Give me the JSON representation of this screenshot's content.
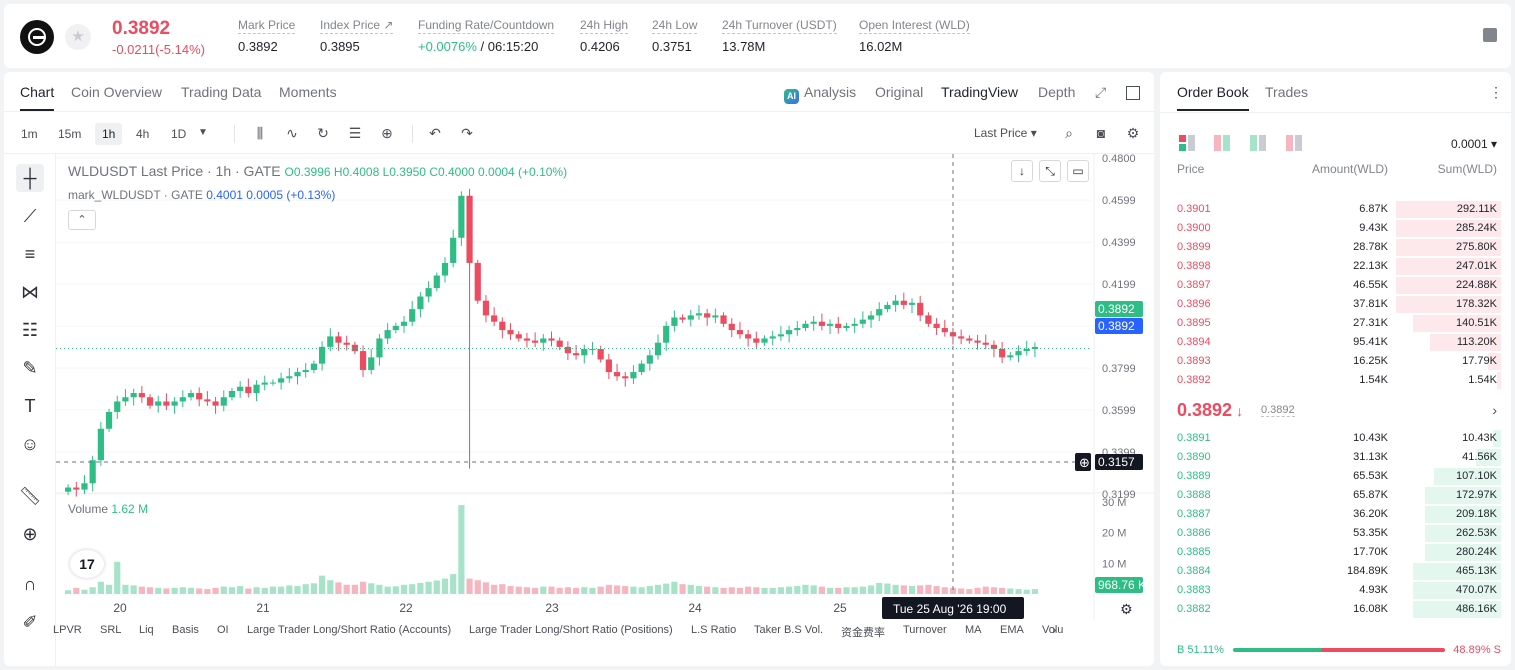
{
  "header": {
    "price": "0.3892",
    "change": "-0.0211(-5.14%)",
    "stats": [
      {
        "label": "Mark Price",
        "value": "0.3892"
      },
      {
        "label": "Index Price ↗",
        "value": "0.3895"
      },
      {
        "label": "Funding Rate/Countdown",
        "value_green": "+0.0076%",
        "value": " / 06:15:20"
      },
      {
        "label": "24h High",
        "value": "0.4206"
      },
      {
        "label": "24h Low",
        "value": "0.3751"
      },
      {
        "label": "24h Turnover (USDT)",
        "value": "13.78M"
      },
      {
        "label": "Open Interest (WLD)",
        "value": "16.02M"
      }
    ]
  },
  "tabs": [
    "Chart",
    "Coin Overview",
    "Trading Data",
    "Moments"
  ],
  "views": {
    "analysis": "Analysis",
    "ai": "AI",
    "original": "Original",
    "tradingview": "TradingView",
    "depth": "Depth"
  },
  "timeframes": [
    "1m",
    "15m",
    "1h",
    "4h",
    "1D"
  ],
  "last_price_select": "Last Price",
  "legend": {
    "title": "WLDUSDT Last Price · 1h · GATE",
    "ohlc": "O0.3996  H0.4008  L0.3950  C0.4000  0.0004 (+0.10%)",
    "mark_name": "mark_WLDUSDT · GATE",
    "mark_vals": "0.4001  0.0005 (+0.13%)",
    "volume_label": "Volume",
    "volume_value": "1.62 M",
    "tv": "17"
  },
  "indicators": [
    "LPVR",
    "SRL",
    "Liq",
    "Basis",
    "OI",
    "Large Trader Long/Short Ratio (Accounts)",
    "Large Trader Long/Short Ratio (Positions)",
    "L.S Ratio",
    "Taker B.S Vol.",
    "资金费率",
    "Turnover",
    "MA",
    "EMA",
    "Volu"
  ],
  "chart_data": {
    "type": "candlestick",
    "symbol": "WLDUSDT",
    "interval": "1h",
    "y_ticks": [
      "0.4800",
      "0.4599",
      "0.4399",
      "0.4199",
      "0.3999",
      "0.3799",
      "0.3599",
      "0.3399",
      "0.3199"
    ],
    "x_ticks": [
      "20",
      "21",
      "22",
      "23",
      "24",
      "25"
    ],
    "ylim": [
      0.3199,
      0.48
    ],
    "volume_ticks": [
      "30 M",
      "20 M",
      "10 M"
    ],
    "price_labels": {
      "open_interest": "0.3892",
      "last": "0.3892",
      "crosshair": "0.3157",
      "volume": "968.76 K"
    },
    "crosshair_time": "Tue 25 Aug '26  19:00",
    "close_series": [
      0.323,
      0.322,
      0.325,
      0.336,
      0.351,
      0.359,
      0.364,
      0.366,
      0.368,
      0.366,
      0.362,
      0.364,
      0.362,
      0.364,
      0.366,
      0.368,
      0.365,
      0.364,
      0.362,
      0.366,
      0.369,
      0.371,
      0.368,
      0.372,
      0.373,
      0.373,
      0.375,
      0.376,
      0.378,
      0.379,
      0.382,
      0.39,
      0.395,
      0.392,
      0.391,
      0.388,
      0.379,
      0.385,
      0.394,
      0.398,
      0.4,
      0.402,
      0.408,
      0.414,
      0.418,
      0.424,
      0.43,
      0.442,
      0.462,
      0.43,
      0.412,
      0.405,
      0.402,
      0.398,
      0.396,
      0.394,
      0.393,
      0.392,
      0.394,
      0.393,
      0.39,
      0.387,
      0.386,
      0.389,
      0.389,
      0.384,
      0.378,
      0.376,
      0.375,
      0.378,
      0.382,
      0.386,
      0.392,
      0.4,
      0.404,
      0.403,
      0.405,
      0.406,
      0.404,
      0.405,
      0.401,
      0.398,
      0.396,
      0.394,
      0.392,
      0.394,
      0.395,
      0.396,
      0.398,
      0.399,
      0.401,
      0.402,
      0.4,
      0.401,
      0.399,
      0.4,
      0.401,
      0.403,
      0.405,
      0.408,
      0.41,
      0.412,
      0.41,
      0.411,
      0.405,
      0.401,
      0.399,
      0.397,
      0.395,
      0.394,
      0.393,
      0.392,
      0.391,
      0.389,
      0.385,
      0.386,
      0.388,
      0.389,
      0.39
    ],
    "volume_series": [
      1.2,
      2,
      1.4,
      2.2,
      4,
      3,
      10.5,
      3,
      2.8,
      2.4,
      2.2,
      2,
      1.8,
      2,
      2.2,
      2,
      1.8,
      1.6,
      2,
      2.4,
      2.2,
      2.6,
      1.8,
      2.2,
      2,
      2.4,
      2.4,
      2.8,
      2.6,
      3.2,
      3.5,
      6,
      4.5,
      3.8,
      3,
      3,
      4,
      3.5,
      3,
      2.4,
      2.5,
      3,
      3.2,
      3.6,
      4,
      4.4,
      5,
      6.5,
      29,
      5,
      4.5,
      3.8,
      3,
      3.2,
      2.6,
      2.4,
      2.2,
      2,
      2.4,
      2.4,
      2,
      2.2,
      2,
      2.2,
      2,
      2.4,
      3,
      2.8,
      2.6,
      2.4,
      2.2,
      2.6,
      3,
      3.4,
      4,
      3.2,
      3,
      2.6,
      2.4,
      2.2,
      2,
      2.2,
      2,
      2.4,
      2.2,
      2,
      2,
      2.2,
      2.4,
      2.6,
      3,
      2.8,
      2.4,
      2,
      2,
      2.2,
      2.2,
      2.4,
      2.8,
      3.6,
      3.4,
      3,
      2.8,
      2.6,
      2.8,
      3,
      2.6,
      2.2,
      2,
      1.8,
      1.6,
      2,
      2.4,
      2.2,
      2,
      1.8,
      1.6,
      1.4,
      1.6
    ]
  },
  "order_book": {
    "tabs": [
      "Order Book",
      "Trades"
    ],
    "precision": "0.0001",
    "headers": [
      "Price",
      "Amount(WLD)",
      "Sum(WLD)"
    ],
    "asks": [
      {
        "price": "0.3901",
        "amount": "6.87K",
        "sum": "292.11K",
        "depth": 0.25
      },
      {
        "price": "0.3900",
        "amount": "9.43K",
        "sum": "285.24K",
        "depth": 0.25
      },
      {
        "price": "0.3899",
        "amount": "28.78K",
        "sum": "275.80K",
        "depth": 0.25
      },
      {
        "price": "0.3898",
        "amount": "22.13K",
        "sum": "247.01K",
        "depth": 0.25
      },
      {
        "price": "0.3897",
        "amount": "46.55K",
        "sum": "224.88K",
        "depth": 0.25
      },
      {
        "price": "0.3896",
        "amount": "37.81K",
        "sum": "178.32K",
        "depth": 0.25
      },
      {
        "price": "0.3895",
        "amount": "27.31K",
        "sum": "140.51K",
        "depth": 0.21
      },
      {
        "price": "0.3894",
        "amount": "95.41K",
        "sum": "113.20K",
        "depth": 0.17
      },
      {
        "price": "0.3893",
        "amount": "16.25K",
        "sum": "17.79K",
        "depth": 0.03
      },
      {
        "price": "0.3892",
        "amount": "1.54K",
        "sum": "1.54K",
        "depth": 0.01
      }
    ],
    "mid_price": "0.3892",
    "mid_arrow": "↓",
    "mark": "0.3892",
    "bids": [
      {
        "price": "0.3891",
        "amount": "10.43K",
        "sum": "10.43K",
        "depth": 0.02
      },
      {
        "price": "0.3890",
        "amount": "31.13K",
        "sum": "41.56K",
        "depth": 0.06
      },
      {
        "price": "0.3889",
        "amount": "65.53K",
        "sum": "107.10K",
        "depth": 0.16
      },
      {
        "price": "0.3888",
        "amount": "65.87K",
        "sum": "172.97K",
        "depth": 0.18
      },
      {
        "price": "0.3887",
        "amount": "36.20K",
        "sum": "209.18K",
        "depth": 0.18
      },
      {
        "price": "0.3886",
        "amount": "53.35K",
        "sum": "262.53K",
        "depth": 0.18
      },
      {
        "price": "0.3885",
        "amount": "17.70K",
        "sum": "280.24K",
        "depth": 0.18
      },
      {
        "price": "0.3884",
        "amount": "184.89K",
        "sum": "465.13K",
        "depth": 0.21
      },
      {
        "price": "0.3883",
        "amount": "4.93K",
        "sum": "470.07K",
        "depth": 0.21
      },
      {
        "price": "0.3882",
        "amount": "16.08K",
        "sum": "486.16K",
        "depth": 0.21
      }
    ],
    "buy_ratio": "B 51.11%",
    "sell_ratio": "48.89% S",
    "buy_ratio_value": 0.5111
  },
  "colors": {
    "up": "#2ebd85",
    "down": "#ec4b60",
    "blue": "#2962ff"
  }
}
